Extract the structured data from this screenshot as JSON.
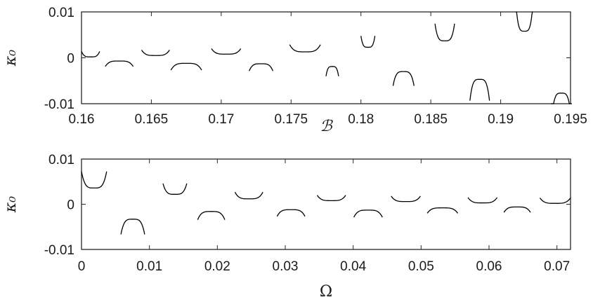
{
  "chart_data": [
    {
      "type": "line",
      "xlabel": "ℬ",
      "ylabel": "κ₀",
      "xlim": [
        0.16,
        0.195
      ],
      "ylim": [
        -0.01,
        0.01
      ],
      "xticks": [
        0.16,
        0.165,
        0.17,
        0.175,
        0.18,
        0.185,
        0.19,
        0.195
      ],
      "xtick_labels": [
        "0.16",
        "0.165",
        "0.17",
        "0.175",
        "0.18",
        "0.185",
        "0.19",
        "0.195"
      ],
      "yticks": [
        -0.01,
        0,
        0.01
      ],
      "ytick_labels": [
        "-0.01",
        "0",
        "0.01"
      ],
      "grid": false,
      "segments": [
        {
          "x0": 0.16,
          "x1": 0.1613,
          "v": 0.0002,
          "kind": "min"
        },
        {
          "x0": 0.1617,
          "x1": 0.1637,
          "v": -0.0007,
          "kind": "max"
        },
        {
          "x0": 0.1643,
          "x1": 0.1663,
          "v": 0.0005,
          "kind": "min"
        },
        {
          "x0": 0.1664,
          "x1": 0.1686,
          "v": -0.0012,
          "kind": "max"
        },
        {
          "x0": 0.1693,
          "x1": 0.1714,
          "v": 0.0008,
          "kind": "min"
        },
        {
          "x0": 0.172,
          "x1": 0.1737,
          "v": -0.0013,
          "kind": "max"
        },
        {
          "x0": 0.1749,
          "x1": 0.1771,
          "v": 0.0013,
          "kind": "min"
        },
        {
          "x0": 0.1775,
          "x1": 0.1784,
          "v": -0.0019,
          "kind": "max"
        },
        {
          "x0": 0.18,
          "x1": 0.181,
          "v": 0.0023,
          "kind": "min"
        },
        {
          "x0": 0.1823,
          "x1": 0.1838,
          "v": -0.003,
          "kind": "max"
        },
        {
          "x0": 0.1853,
          "x1": 0.1867,
          "v": 0.0037,
          "kind": "min"
        },
        {
          "x0": 0.1878,
          "x1": 0.1892,
          "v": -0.0047,
          "kind": "max"
        },
        {
          "x0": 0.1911,
          "x1": 0.1923,
          "v": 0.0058,
          "kind": "min"
        },
        {
          "x0": 0.1936,
          "x1": 0.1951,
          "v": -0.0077,
          "kind": "max"
        }
      ]
    },
    {
      "type": "line",
      "xlabel": "Ω",
      "ylabel": "κ₀",
      "xlim": [
        0,
        0.072
      ],
      "ylim": [
        -0.01,
        0.01
      ],
      "xticks": [
        0,
        0.01,
        0.02,
        0.03,
        0.04,
        0.05,
        0.06,
        0.07
      ],
      "xtick_labels": [
        "0",
        "0.01",
        "0.02",
        "0.03",
        "0.04",
        "0.05",
        "0.06",
        "0.07"
      ],
      "yticks": [
        -0.01,
        0,
        0.01
      ],
      "ytick_labels": [
        "-0.01",
        "0",
        "0.01"
      ],
      "grid": false,
      "segments": [
        {
          "x0": 0.0,
          "x1": 0.0037,
          "v": 0.0036,
          "kind": "min"
        },
        {
          "x0": 0.0058,
          "x1": 0.0093,
          "v": -0.0033,
          "kind": "max"
        },
        {
          "x0": 0.012,
          "x1": 0.0155,
          "v": 0.0022,
          "kind": "min"
        },
        {
          "x0": 0.0171,
          "x1": 0.0211,
          "v": -0.0016,
          "kind": "max"
        },
        {
          "x0": 0.0226,
          "x1": 0.0267,
          "v": 0.0012,
          "kind": "min"
        },
        {
          "x0": 0.0288,
          "x1": 0.0329,
          "v": -0.0012,
          "kind": "max"
        },
        {
          "x0": 0.0347,
          "x1": 0.0389,
          "v": 0.0008,
          "kind": "min"
        },
        {
          "x0": 0.0401,
          "x1": 0.0443,
          "v": -0.0013,
          "kind": "max"
        },
        {
          "x0": 0.0456,
          "x1": 0.0499,
          "v": 0.0006,
          "kind": "min"
        },
        {
          "x0": 0.0509,
          "x1": 0.0554,
          "v": -0.0008,
          "kind": "max"
        },
        {
          "x0": 0.0569,
          "x1": 0.0612,
          "v": 0.0003,
          "kind": "min"
        },
        {
          "x0": 0.0622,
          "x1": 0.0661,
          "v": -0.0006,
          "kind": "max"
        },
        {
          "x0": 0.0675,
          "x1": 0.072,
          "v": 0.0002,
          "kind": "min"
        }
      ]
    }
  ]
}
